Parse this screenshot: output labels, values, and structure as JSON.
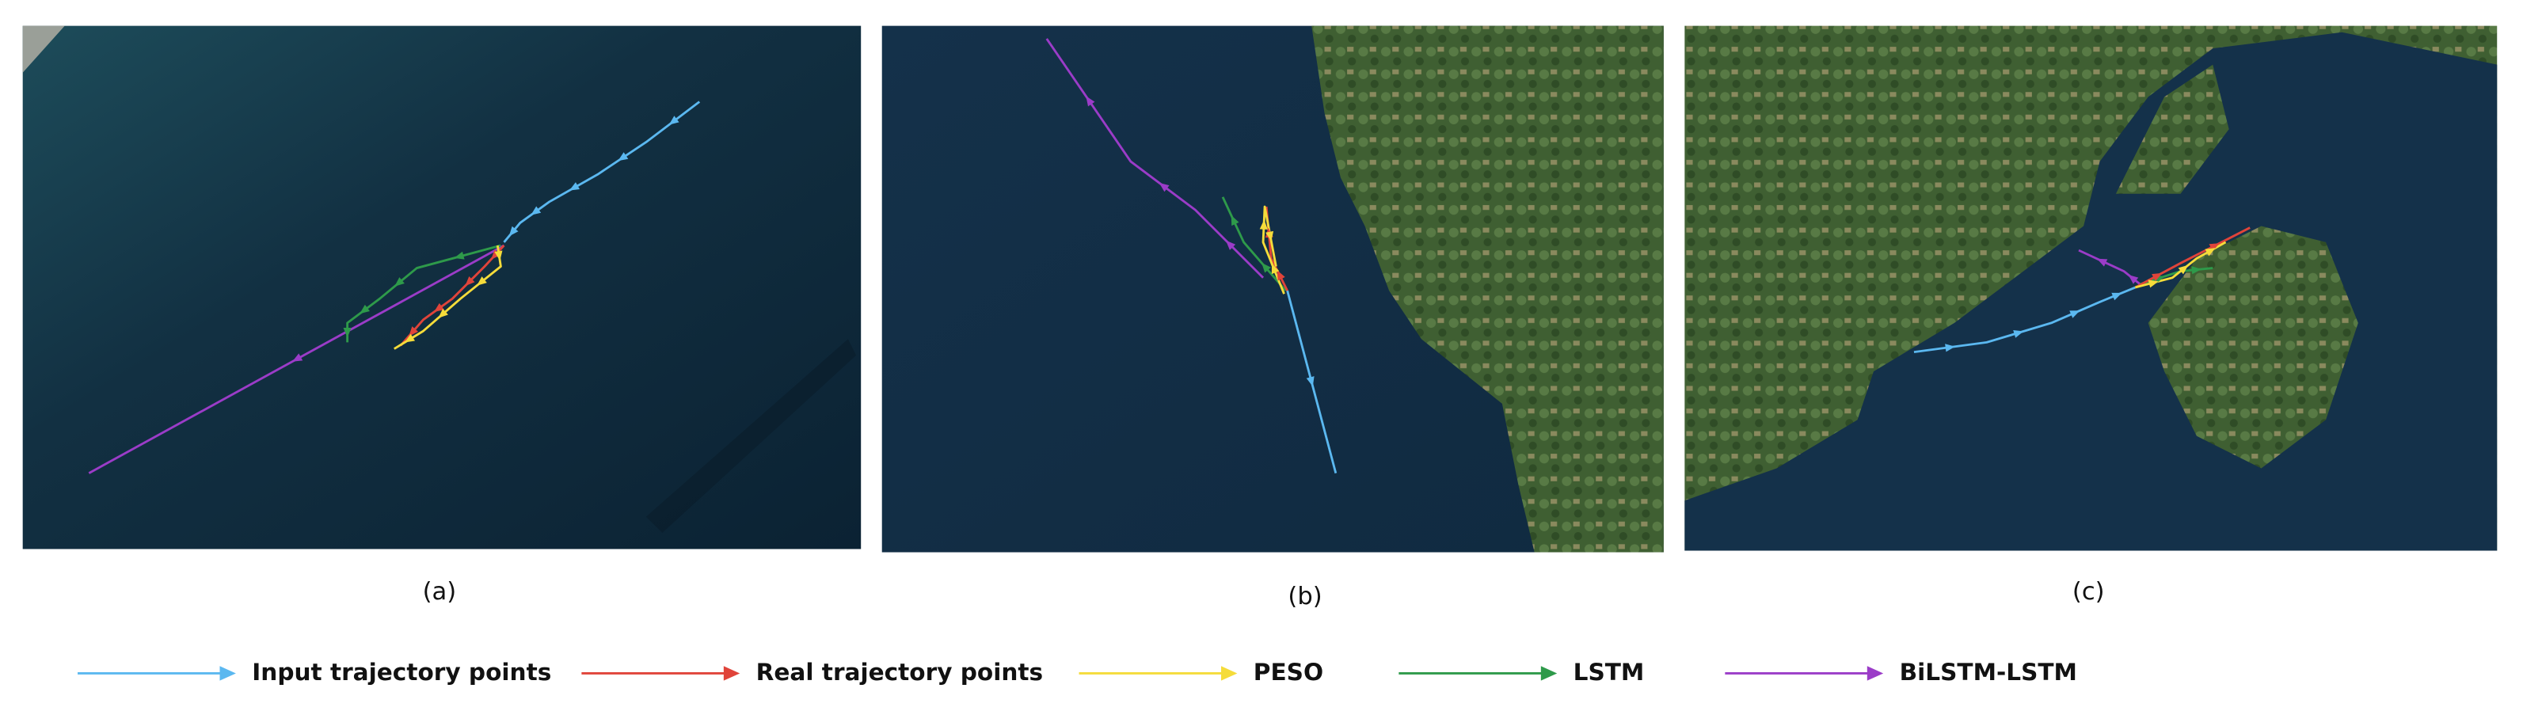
{
  "panels": [
    {
      "caption": "(a)"
    },
    {
      "caption": "(b)"
    },
    {
      "caption": "(c)"
    }
  ],
  "legend": [
    {
      "label": "Input trajectory points",
      "color": "#5bb8f0"
    },
    {
      "label": "Real trajectory points",
      "color": "#e0443a"
    },
    {
      "label": "PESO",
      "color": "#f5dc3a"
    },
    {
      "label": "LSTM",
      "color": "#2e9a4a"
    },
    {
      "label": "BiLSTM-LSTM",
      "color": "#9b3cc8"
    }
  ]
}
